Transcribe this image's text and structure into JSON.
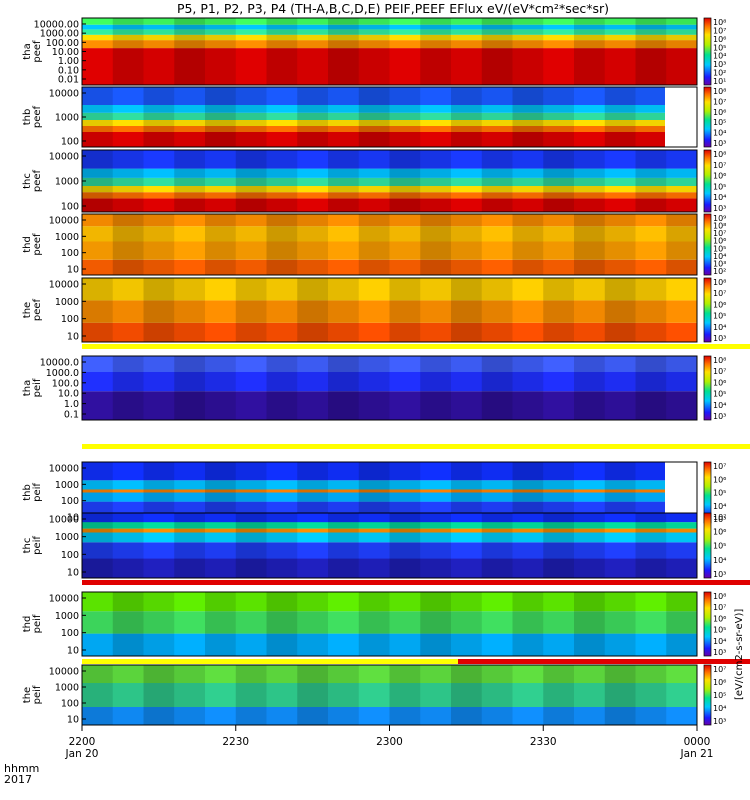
{
  "title": "P5, P1, P2, P3, P4 (TH-A,B,C,D,E) PEIF,PEEF EFlux eV/(eV*cm²*sec*sr)",
  "colorbar_label": "[eV/(cm2-s-sr-eV)]",
  "x_axis": {
    "row_label_1": "hhmm",
    "row_label_2": "2017",
    "ticks": [
      {
        "label": "2200",
        "date": "Jan 20"
      },
      {
        "label": "2230",
        "date": ""
      },
      {
        "label": "2300",
        "date": ""
      },
      {
        "label": "2330",
        "date": ""
      },
      {
        "label": "0000",
        "date": "Jan 21"
      }
    ]
  },
  "chart_data": [
    {
      "type": "heatmap",
      "probe": "tha",
      "product": "peef",
      "ylabel": [
        "tha",
        "peef"
      ],
      "yscale": "log",
      "yticks": [
        "10000.00",
        "1000.00",
        "100.00",
        "10.00",
        "1.00",
        "0.10",
        "0.01"
      ],
      "colorbar_ticks": [
        "10⁸",
        "10⁷",
        "10⁶",
        "10⁵",
        "10⁴",
        "10³",
        "10²",
        "10¹"
      ],
      "flag_bar": "none"
    },
    {
      "type": "heatmap",
      "probe": "thb",
      "product": "peef",
      "ylabel": [
        "thb",
        "peef"
      ],
      "yscale": "log",
      "yticks": [
        "10000",
        "1000",
        "100"
      ],
      "colorbar_ticks": [
        "10⁸",
        "10⁷",
        "10⁶",
        "10⁵",
        "10⁴",
        "10³"
      ],
      "flag_bar": "none",
      "data_ends_at": "2356"
    },
    {
      "type": "heatmap",
      "probe": "thc",
      "product": "peef",
      "ylabel": [
        "thc",
        "peef"
      ],
      "yscale": "log",
      "yticks": [
        "10000",
        "1000",
        "100"
      ],
      "colorbar_ticks": [
        "10⁸",
        "10⁷",
        "10⁶",
        "10⁵",
        "10⁴",
        "10³"
      ],
      "flag_bar": "none"
    },
    {
      "type": "heatmap",
      "probe": "thd",
      "product": "peef",
      "ylabel": [
        "thd",
        "peef"
      ],
      "yscale": "log",
      "yticks": [
        "10000",
        "1000",
        "100",
        "10"
      ],
      "colorbar_ticks": [
        "10⁹",
        "10⁸",
        "10⁷",
        "10⁶",
        "10⁵",
        "10⁴",
        "10³",
        "10²"
      ],
      "flag_bar": "none"
    },
    {
      "type": "heatmap",
      "probe": "the",
      "product": "peef",
      "ylabel": [
        "the",
        "peef"
      ],
      "yscale": "log",
      "yticks": [
        "10000",
        "1000",
        "100",
        "10"
      ],
      "colorbar_ticks": [
        "10⁸",
        "10⁷",
        "10⁶",
        "10⁵",
        "10⁴",
        "10³"
      ],
      "flag_bar": "yellow"
    },
    {
      "type": "heatmap",
      "probe": "tha",
      "product": "peif",
      "ylabel": [
        "tha",
        "peif"
      ],
      "yscale": "log",
      "yticks": [
        "10000.0",
        "1000.0",
        "100.0",
        "10.0",
        "1.0",
        "0.1"
      ],
      "colorbar_ticks": [
        "10⁸",
        "10⁷",
        "10⁶",
        "10⁵",
        "10⁴",
        "10³"
      ],
      "flag_bar": "yellow"
    },
    {
      "type": "heatmap",
      "probe": "thb",
      "product": "peif",
      "ylabel": [
        "thb",
        "peif"
      ],
      "yscale": "log",
      "yticks": [
        "10000",
        "1000",
        "100",
        "10"
      ],
      "colorbar_ticks": [
        "10⁷",
        "10⁶",
        "10⁵",
        "10⁴",
        "10³"
      ],
      "flag_bar": "none",
      "data_ends_at": "2356"
    },
    {
      "type": "heatmap",
      "probe": "thc",
      "product": "peif",
      "ylabel": [
        "thc",
        "peif"
      ],
      "yscale": "log",
      "yticks": [
        "10000",
        "1000",
        "100",
        "10"
      ],
      "colorbar_ticks": [
        "10⁷",
        "10⁶",
        "10⁵",
        "10⁴",
        "10³"
      ],
      "flag_bar": "red"
    },
    {
      "type": "heatmap",
      "probe": "thd",
      "product": "peif",
      "ylabel": [
        "thd",
        "peif"
      ],
      "yscale": "log",
      "yticks": [
        "10000",
        "1000",
        "100",
        "10"
      ],
      "colorbar_ticks": [
        "10⁸",
        "10⁷",
        "10⁶",
        "10⁵",
        "10⁴",
        "10³"
      ],
      "flag_bar": "yellow-then-red"
    },
    {
      "type": "heatmap",
      "probe": "the",
      "product": "peif",
      "ylabel": [
        "the",
        "peif"
      ],
      "yscale": "log",
      "yticks": [
        "10000",
        "1000",
        "100",
        "10"
      ],
      "colorbar_ticks": [
        "10⁷",
        "10⁶",
        "10⁵",
        "10⁴",
        "10³"
      ],
      "flag_bar": "none"
    }
  ],
  "colors": {
    "flag_yellow": "#ffff00",
    "flag_red": "#e00000",
    "frame": "#000000"
  }
}
